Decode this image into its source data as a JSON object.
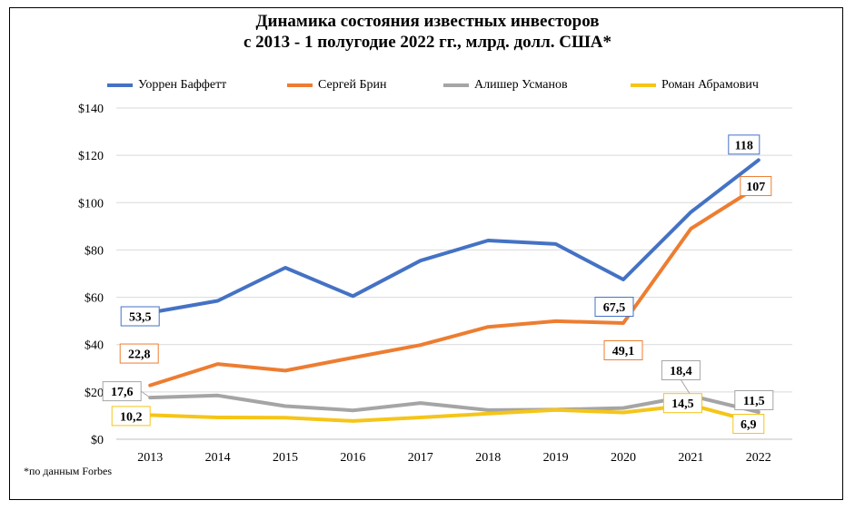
{
  "title_line1": "Динамика состояния известных инвесторов",
  "title_line2": "с 2013 - 1 полугодие 2022 гг., млрд. долл. США*",
  "footnote": "*по данным Forbes",
  "chart_data": {
    "type": "line",
    "title": "Динамика состояния известных инвесторов с 2013 - 1 полугодие 2022 гг., млрд. долл. США*",
    "categories": [
      "2013",
      "2014",
      "2015",
      "2016",
      "2017",
      "2018",
      "2019",
      "2020",
      "2021",
      "2022"
    ],
    "ylim": [
      0,
      140
    ],
    "yticks": [
      0,
      20,
      40,
      60,
      80,
      100,
      120,
      140
    ],
    "ytick_labels": [
      "$0",
      "$20",
      "$40",
      "$60",
      "$80",
      "$100",
      "$120",
      "$140"
    ],
    "grid": true,
    "legend_position": "top",
    "series": [
      {
        "name": "Уоррен Баффетт",
        "color": "#4472C4",
        "values": [
          53.5,
          58.5,
          72.5,
          60.5,
          75.5,
          84,
          82.5,
          67.5,
          96,
          118
        ],
        "labels": [
          {
            "index": 0,
            "text": "53,5"
          },
          {
            "index": 7,
            "text": "67,5"
          },
          {
            "index": 9,
            "text": "118"
          }
        ]
      },
      {
        "name": "Сергей Брин",
        "color": "#ED7D31",
        "values": [
          22.8,
          31.8,
          29,
          34.5,
          39.8,
          47.5,
          49.9,
          49.1,
          89,
          107
        ],
        "labels": [
          {
            "index": 0,
            "text": "22,8"
          },
          {
            "index": 7,
            "text": "49,1"
          },
          {
            "index": 9,
            "text": "107"
          }
        ]
      },
      {
        "name": "Алишер Усманов",
        "color": "#A5A5A5",
        "values": [
          17.6,
          18.5,
          14,
          12.2,
          15.3,
          12.3,
          12.5,
          13.2,
          18.4,
          11.5
        ],
        "labels": [
          {
            "index": 0,
            "text": "17,6"
          },
          {
            "index": 8,
            "text": "18,4"
          },
          {
            "index": 9,
            "text": "11,5"
          }
        ]
      },
      {
        "name": "Роман Абрамович",
        "color": "#F5C518",
        "values": [
          10.2,
          9.2,
          9.1,
          7.7,
          9.2,
          10.8,
          12.4,
          11.3,
          14.5,
          6.9
        ],
        "labels": [
          {
            "index": 0,
            "text": "10,2"
          },
          {
            "index": 8,
            "text": "14,5"
          },
          {
            "index": 9,
            "text": "6,9"
          }
        ]
      }
    ]
  }
}
